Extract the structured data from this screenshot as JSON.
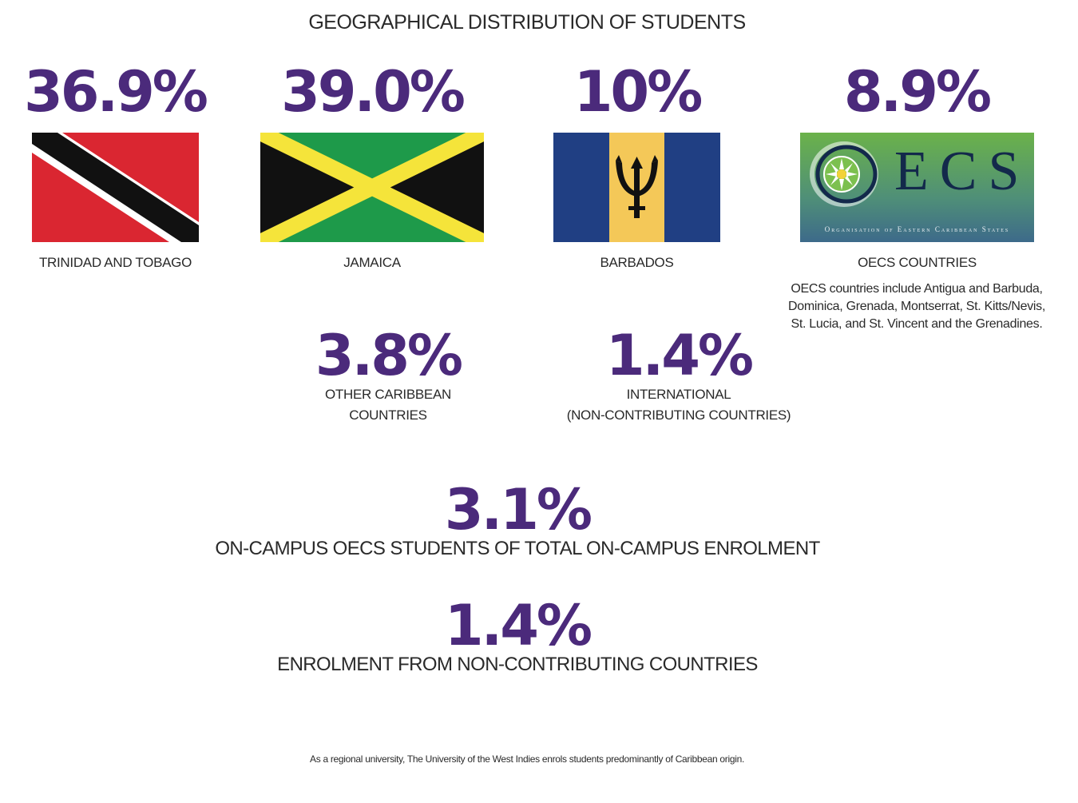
{
  "title": "GEOGRAPHICAL DISTRIBUTION OF STUDENTS",
  "colors": {
    "accent": "#4b2a7b"
  },
  "regions": [
    {
      "percent": "36.9%",
      "label": "TRINIDAD AND TOBAGO",
      "flag": "trinidad-and-tobago-flag"
    },
    {
      "percent": "39.0%",
      "label": "JAMAICA",
      "flag": "jamaica-flag"
    },
    {
      "percent": "10%",
      "label": "BARBADOS",
      "flag": "barbados-flag"
    },
    {
      "percent": "8.9%",
      "label": "OECS COUNTRIES",
      "flag": "oecs-logo",
      "logo_text": "ECS",
      "logo_subtext": "Organisation of Eastern Caribbean States",
      "note": [
        "OECS countries include Antigua and Barbuda,",
        "Dominica, Grenada, Montserrat, St. Kitts/Nevis,",
        "St. Lucia, and St. Vincent and the Grenadines."
      ]
    }
  ],
  "other": [
    {
      "percent": "3.8%",
      "label_lines": [
        "OTHER CARIBBEAN",
        "COUNTRIES"
      ]
    },
    {
      "percent": "1.4%",
      "label_lines": [
        "INTERNATIONAL",
        "(NON-CONTRIBUTING COUNTRIES)"
      ]
    }
  ],
  "stats": [
    {
      "percent": "3.1%",
      "label": "ON-CAMPUS OECS STUDENTS OF TOTAL ON-CAMPUS ENROLMENT"
    },
    {
      "percent": "1.4%",
      "label": "ENROLMENT FROM NON-CONTRIBUTING COUNTRIES"
    }
  ],
  "footnote": "As a regional university, The University of the West Indies enrols students predominantly of Caribbean origin."
}
